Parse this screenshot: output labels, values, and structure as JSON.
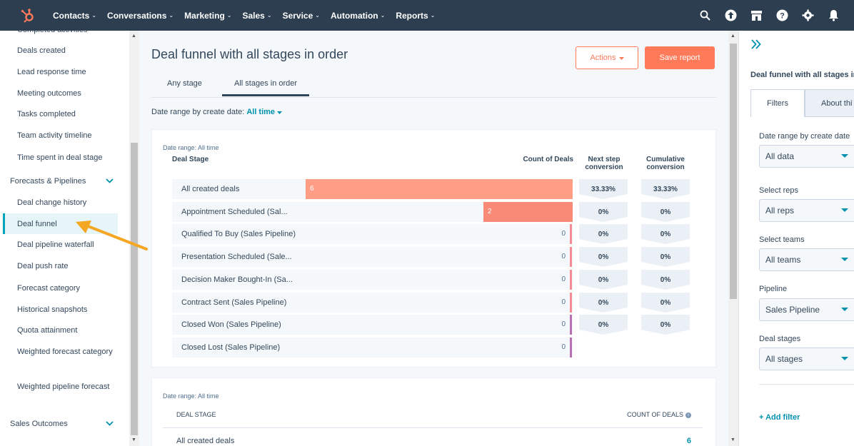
{
  "topnav": {
    "items": [
      {
        "label": "Contacts"
      },
      {
        "label": "Conversations"
      },
      {
        "label": "Marketing"
      },
      {
        "label": "Sales"
      },
      {
        "label": "Service"
      },
      {
        "label": "Automation"
      },
      {
        "label": "Reports"
      }
    ],
    "caret": "⌄"
  },
  "sidebar": {
    "items_top": [
      "Completed activities",
      "Deals created",
      "Lead response time",
      "Meeting outcomes",
      "Tasks completed",
      "Team activity timeline",
      "Time spent in deal stage"
    ],
    "group_forecasts": "Forecasts & Pipelines",
    "items_forecasts": [
      "Deal change history",
      "Deal funnel",
      "Deal pipeline waterfall",
      "Deal push rate",
      "Forecast category",
      "Historical snapshots",
      "Quota attainment",
      "Weighted forecast category",
      "Weighted pipeline forecast"
    ],
    "group_sales_outcomes": "Sales Outcomes"
  },
  "main": {
    "title": "Deal funnel with all stages in order",
    "actions_label": "Actions",
    "save_label": "Save report",
    "tabs": [
      "Any stage",
      "All stages in order"
    ],
    "date_filter_label": "Date range by create date:",
    "date_filter_value": "All time"
  },
  "chart_data": {
    "type": "bar",
    "title": "Deal funnel with all stages in order",
    "date_range": "Date range: All time",
    "header_stage": "Deal Stage",
    "header_count": "Count of Deals",
    "header_next": "Next step conversion",
    "header_cumulative": "Cumulative conversion",
    "categories": [
      "All created deals",
      "Appointment Scheduled (Sal...",
      "Qualified To Buy (Sales Pipeline)",
      "Presentation Scheduled (Sale...",
      "Decision Maker Bought-In (Sa...",
      "Contract Sent (Sales Pipeline)",
      "Closed Won (Sales Pipeline)",
      "Closed Lost (Sales Pipeline)"
    ],
    "values": [
      6,
      2,
      0,
      0,
      0,
      0,
      0,
      0
    ],
    "next_step_conversion": [
      "33.33%",
      "0%",
      "0%",
      "0%",
      "0%",
      "0%",
      "0%"
    ],
    "cumulative_conversion": [
      "33.33%",
      "0%",
      "0%",
      "0%",
      "0%",
      "0%",
      "0%"
    ],
    "max": 6
  },
  "table": {
    "date_range": "Date range: All time",
    "col_stage": "DEAL STAGE",
    "col_count": "COUNT OF DEALS",
    "first_row_stage": "All created deals",
    "first_row_count": "6"
  },
  "rpanel": {
    "title": "Deal funnel with all stages in",
    "tab_filters": "Filters",
    "tab_about": "About thi",
    "filters": [
      {
        "label": "Date range by create date",
        "value": "All data"
      },
      {
        "label": "Select reps",
        "value": "All reps"
      },
      {
        "label": "Select teams",
        "value": "All teams"
      },
      {
        "label": "Pipeline",
        "value": "Sales Pipeline"
      },
      {
        "label": "Deal stages",
        "value": "All stages"
      }
    ],
    "add_filter": "Add filter"
  },
  "colors": {
    "nav_bg": "#2d3e50",
    "accent": "#ff7a59",
    "link": "#0091ae",
    "bar": "#ff9d85"
  }
}
